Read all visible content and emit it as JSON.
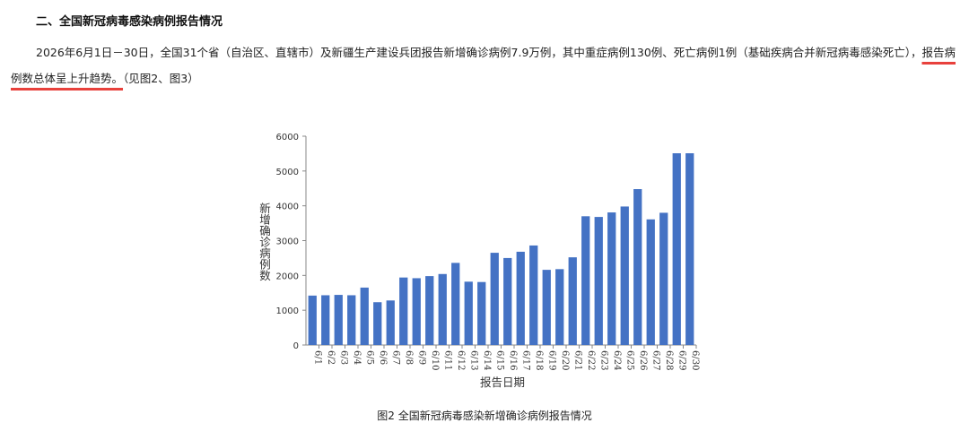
{
  "section_title": "二、全国新冠病毒感染病例报告情况",
  "paragraph": {
    "text_before": "2026年6月1日－30日，全国31个省（自治区、直辖市）及新疆生产建设兵团报告新增确诊病例7.9万例，其中重症病例130例、死亡病例1例（基础疾病合并新冠病毒感染死亡），",
    "highlight": "报告病例数总体呈上升趋势。",
    "text_after": "（见图2、图3）"
  },
  "caption": "图2 全国新冠病毒感染新增确诊病例报告情况",
  "colors": {
    "bar": "#4472c4",
    "underline": "#e8413c"
  },
  "chart_data": {
    "type": "bar",
    "xlabel": "报告日期",
    "ylabel": "新增确诊病例数",
    "ylim": [
      0,
      6000
    ],
    "yticks": [
      0,
      1000,
      2000,
      3000,
      4000,
      5000,
      6000
    ],
    "grid": false,
    "categories": [
      "6/1",
      "6/2",
      "6/3",
      "6/4",
      "6/5",
      "6/6",
      "6/7",
      "6/8",
      "6/9",
      "6/10",
      "6/11",
      "6/12",
      "6/13",
      "6/14",
      "6/15",
      "6/16",
      "6/17",
      "6/18",
      "6/19",
      "6/20",
      "6/21",
      "6/22",
      "6/23",
      "6/24",
      "6/25",
      "6/26",
      "6/27",
      "6/28",
      "6/29",
      "6/30"
    ],
    "values": [
      1420,
      1430,
      1440,
      1430,
      1650,
      1230,
      1280,
      1940,
      1920,
      1980,
      2040,
      2360,
      1820,
      1810,
      2650,
      2500,
      2680,
      2860,
      2160,
      2180,
      2520,
      3700,
      3680,
      3810,
      3980,
      4480,
      3610,
      3800,
      5510,
      5510
    ]
  }
}
